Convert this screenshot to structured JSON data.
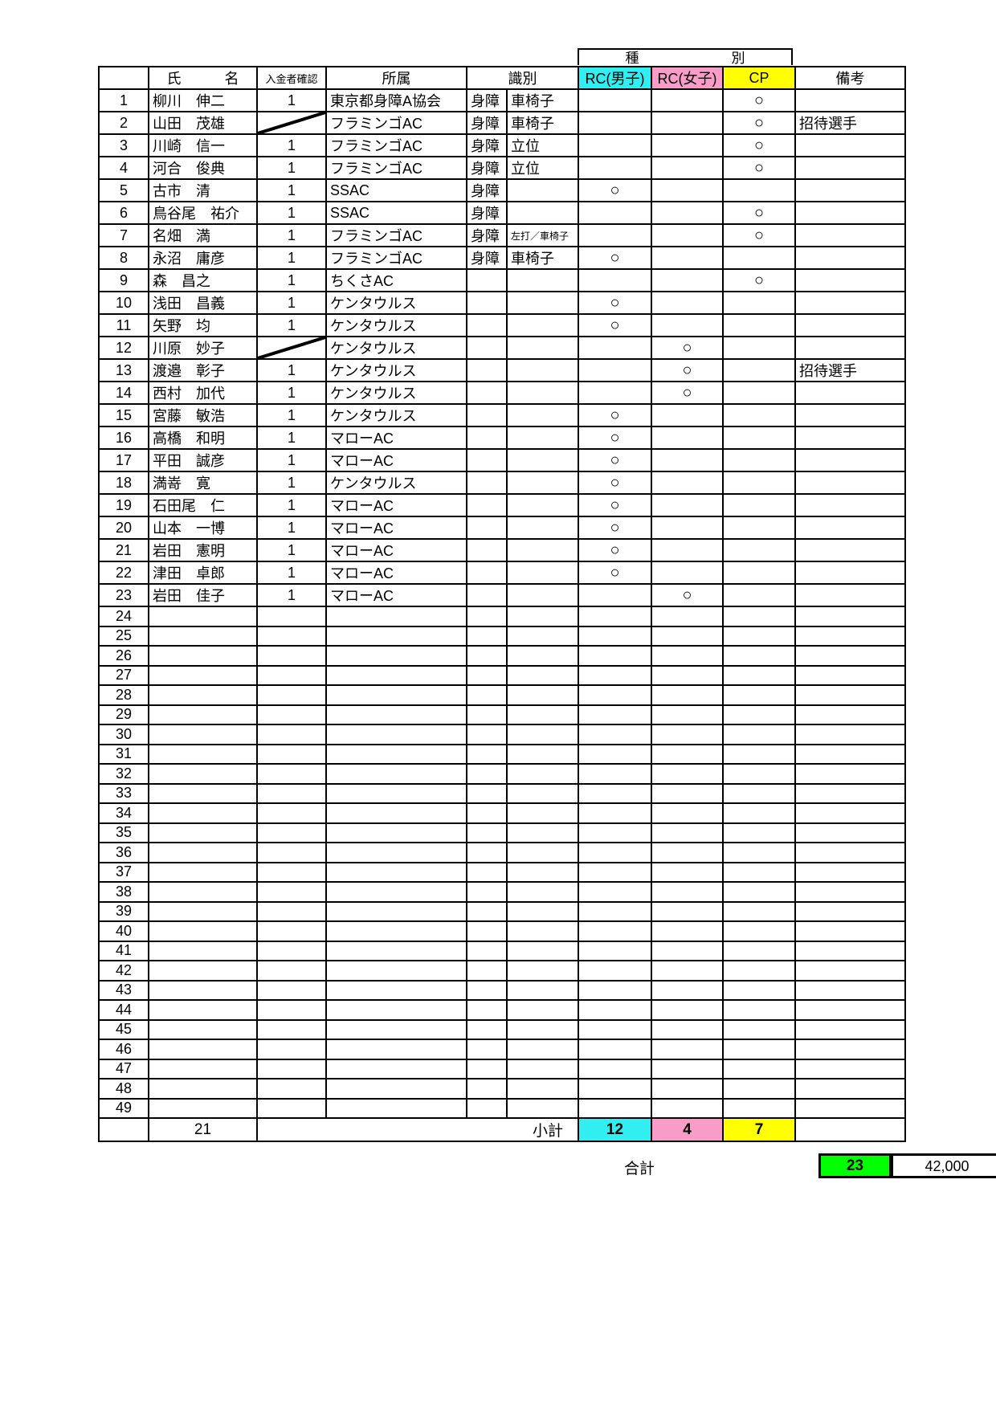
{
  "header": {
    "group_label_1": "種",
    "group_label_2": "別",
    "columns": [
      "",
      "氏　　　名",
      "入金者確認",
      "所属",
      "識別",
      "RC(男子)",
      "RC(女子)",
      "CP",
      "備考"
    ]
  },
  "colors": {
    "rc_male": "#33eef0",
    "rc_female": "#f99cc8",
    "cp": "#ffff00",
    "grand_total": "#00ff00"
  },
  "mark_symbol": "○",
  "rows": [
    {
      "no": "1",
      "name": "柳川　伸二",
      "paid": "1",
      "affil": "東京都身障A協会",
      "id1": "身障",
      "id2": "車椅子",
      "cat": "cp",
      "note": ""
    },
    {
      "no": "2",
      "name": "山田　茂雄",
      "paid": "slash",
      "affil": "フラミンゴAC",
      "id1": "身障",
      "id2": "車椅子",
      "cat": "cp",
      "note": "招待選手"
    },
    {
      "no": "3",
      "name": "川崎　信一",
      "paid": "1",
      "affil": "フラミンゴAC",
      "id1": "身障",
      "id2": "立位",
      "cat": "cp",
      "note": ""
    },
    {
      "no": "4",
      "name": "河合　俊典",
      "paid": "1",
      "affil": "フラミンゴAC",
      "id1": "身障",
      "id2": "立位",
      "cat": "cp",
      "note": ""
    },
    {
      "no": "5",
      "name": "古市　清",
      "paid": "1",
      "affil": "SSAC",
      "id1": "身障",
      "id2": "",
      "cat": "rcm",
      "note": ""
    },
    {
      "no": "6",
      "name": "鳥谷尾　祐介",
      "paid": "1",
      "affil": "SSAC",
      "id1": "身障",
      "id2": "",
      "cat": "cp",
      "note": ""
    },
    {
      "no": "7",
      "name": "名畑　満",
      "paid": "1",
      "affil": "フラミンゴAC",
      "id1": "身障",
      "id2": "左打／車椅子",
      "cat": "cp",
      "note": ""
    },
    {
      "no": "8",
      "name": "永沼　庸彦",
      "paid": "1",
      "affil": "フラミンゴAC",
      "id1": "身障",
      "id2": "車椅子",
      "cat": "rcm",
      "note": ""
    },
    {
      "no": "9",
      "name": "森　昌之",
      "paid": "1",
      "affil": "ちくさAC",
      "id1": "",
      "id2": "",
      "cat": "cp",
      "note": ""
    },
    {
      "no": "10",
      "name": "浅田　昌義",
      "paid": "1",
      "affil": "ケンタウルス",
      "id1": "",
      "id2": "",
      "cat": "rcm",
      "note": ""
    },
    {
      "no": "11",
      "name": "矢野　均",
      "paid": "1",
      "affil": "ケンタウルス",
      "id1": "",
      "id2": "",
      "cat": "rcm",
      "note": ""
    },
    {
      "no": "12",
      "name": "川原　妙子",
      "paid": "slash",
      "affil": "ケンタウルス",
      "id1": "",
      "id2": "",
      "cat": "rcf",
      "note": ""
    },
    {
      "no": "13",
      "name": "渡邉　彰子",
      "paid": "1",
      "affil": "ケンタウルス",
      "id1": "",
      "id2": "",
      "cat": "rcf",
      "note": "招待選手"
    },
    {
      "no": "14",
      "name": "西村　加代",
      "paid": "1",
      "affil": "ケンタウルス",
      "id1": "",
      "id2": "",
      "cat": "rcf",
      "note": ""
    },
    {
      "no": "15",
      "name": "宮藤　敏浩",
      "paid": "1",
      "affil": "ケンタウルス",
      "id1": "",
      "id2": "",
      "cat": "rcm",
      "note": ""
    },
    {
      "no": "16",
      "name": "高橋　和明",
      "paid": "1",
      "affil": "マローAC",
      "id1": "",
      "id2": "",
      "cat": "rcm",
      "note": ""
    },
    {
      "no": "17",
      "name": "平田　誠彦",
      "paid": "1",
      "affil": "マローAC",
      "id1": "",
      "id2": "",
      "cat": "rcm",
      "note": ""
    },
    {
      "no": "18",
      "name": "満嵜　寛",
      "paid": "1",
      "affil": "ケンタウルス",
      "id1": "",
      "id2": "",
      "cat": "rcm",
      "note": ""
    },
    {
      "no": "19",
      "name": "石田尾　仁",
      "paid": "1",
      "affil": "マローAC",
      "id1": "",
      "id2": "",
      "cat": "rcm",
      "note": ""
    },
    {
      "no": "20",
      "name": "山本　一博",
      "paid": "1",
      "affil": "マローAC",
      "id1": "",
      "id2": "",
      "cat": "rcm",
      "note": ""
    },
    {
      "no": "21",
      "name": "岩田　憲明",
      "paid": "1",
      "affil": "マローAC",
      "id1": "",
      "id2": "",
      "cat": "rcm",
      "note": ""
    },
    {
      "no": "22",
      "name": "津田　卓郎",
      "paid": "1",
      "affil": "マローAC",
      "id1": "",
      "id2": "",
      "cat": "rcm",
      "note": ""
    },
    {
      "no": "23",
      "name": "岩田　佳子",
      "paid": "1",
      "affil": "マローAC",
      "id1": "",
      "id2": "",
      "cat": "rcf",
      "note": ""
    }
  ],
  "empty_row_numbers": [
    "24",
    "25",
    "26",
    "27",
    "28",
    "29",
    "30",
    "31",
    "32",
    "33",
    "34",
    "35",
    "36",
    "37",
    "38",
    "39",
    "40",
    "41",
    "42",
    "43",
    "44",
    "45",
    "46",
    "47",
    "48",
    "49"
  ],
  "subtotal": {
    "paid_count": "21",
    "label": "小計",
    "rc_male": "12",
    "rc_female": "4",
    "cp": "7"
  },
  "total": {
    "label": "合計",
    "count": "23",
    "amount": "42,000"
  }
}
